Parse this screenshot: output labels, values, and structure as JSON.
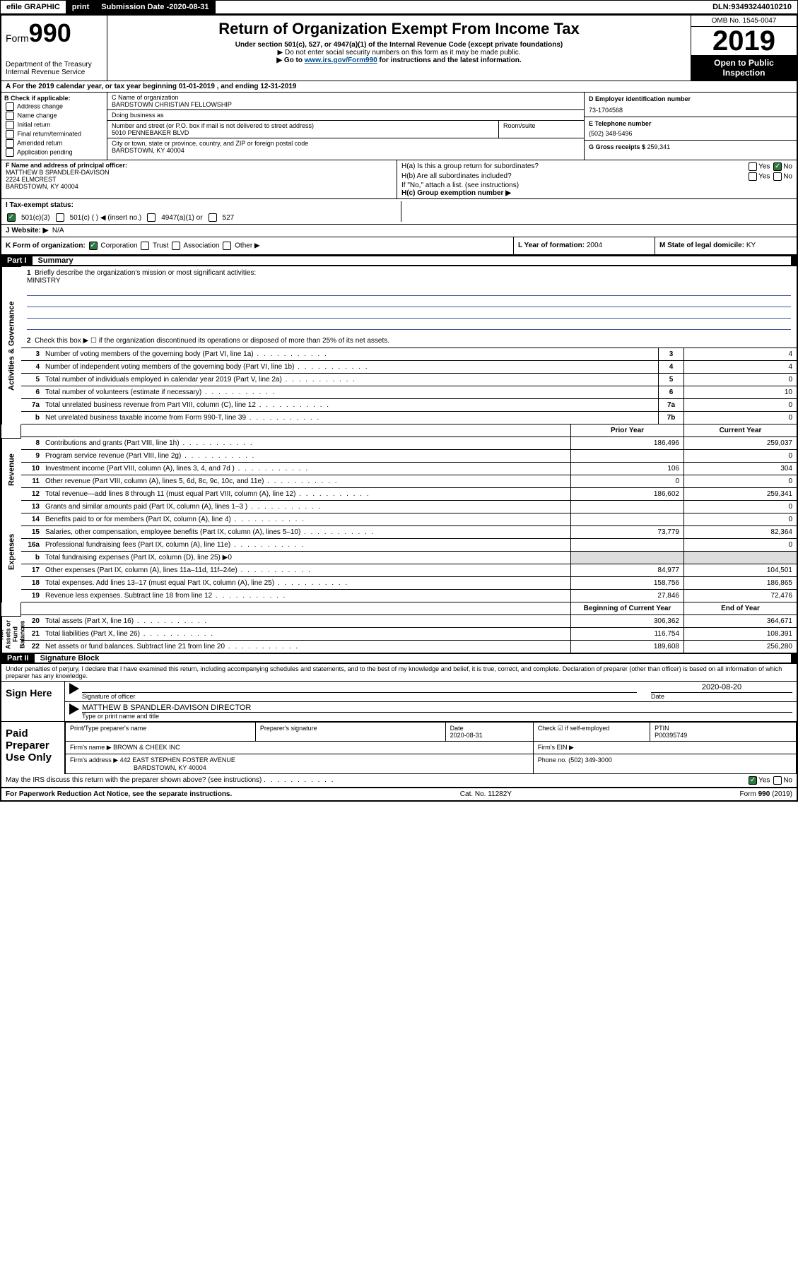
{
  "colors": {
    "black": "#000000",
    "white": "#ffffff",
    "green_check": "#2a7a3f",
    "link_blue": "#004b8d",
    "line_blue": "#3b5998",
    "shaded": "#dddddd"
  },
  "topbar": {
    "efile": "efile GRAPHIC",
    "print": "print",
    "sub_label": "Submission Date - ",
    "sub_date": "2020-08-31",
    "dln_label": "DLN: ",
    "dln": "93493244010210"
  },
  "header": {
    "form_word": "Form",
    "form_num": "990",
    "dept1": "Department of the Treasury",
    "dept2": "Internal Revenue Service",
    "title": "Return of Organization Exempt From Income Tax",
    "sub1": "Under section 501(c), 527, or 4947(a)(1) of the Internal Revenue Code (except private foundations)",
    "sub2": "▶ Do not enter social security numbers on this form as it may be made public.",
    "sub3_pre": "▶ Go to ",
    "sub3_link": "www.irs.gov/Form990",
    "sub3_post": " for instructions and the latest information.",
    "omb": "OMB No. 1545-0047",
    "year": "2019",
    "open": "Open to Public Inspection"
  },
  "rowA": "A For the 2019 calendar year, or tax year beginning 01-01-2019   , and ending 12-31-2019",
  "sectionB": {
    "label": "B Check if applicable:",
    "items": [
      "Address change",
      "Name change",
      "Initial return",
      "Final return/terminated",
      "Amended return",
      "Application pending"
    ]
  },
  "sectionC": {
    "name_label": "C Name of organization",
    "name": "BARDSTOWN CHRISTIAN FELLOWSHIP",
    "dba_label": "Doing business as",
    "dba": "",
    "street_label": "Number and street (or P.O. box if mail is not delivered to street address)",
    "street": "5010 PENNEBAKER BLVD",
    "room_label": "Room/suite",
    "city_label": "City or town, state or province, country, and ZIP or foreign postal code",
    "city": "BARDSTOWN, KY  40004"
  },
  "sectionD": {
    "label": "D Employer identification number",
    "value": "73-1704568"
  },
  "sectionE": {
    "label": "E Telephone number",
    "value": "(502) 348-5496"
  },
  "sectionG": {
    "label": "G Gross receipts $ ",
    "value": "259,341"
  },
  "sectionF": {
    "label": "F Name and address of principal officer:",
    "name": "MATTHEW B SPANDLER-DAVISON",
    "street": "2224 ELMCREST",
    "city": "BARDSTOWN, KY  40004"
  },
  "sectionH": {
    "ha": "H(a)  Is this a group return for subordinates?",
    "hb": "H(b)  Are all subordinates included?",
    "hb_note": "If \"No,\" attach a list. (see instructions)",
    "hc": "H(c)  Group exemption number ▶",
    "yes": "Yes",
    "no": "No"
  },
  "rowI": {
    "label": "I   Tax-exempt status:",
    "c3": "501(c)(3)",
    "c": "501(c) (  ) ◀ (insert no.)",
    "a1": "4947(a)(1) or",
    "527": "527"
  },
  "rowJ": {
    "label": "J   Website: ▶",
    "value": "N/A"
  },
  "rowK": {
    "label": "K Form of organization:",
    "corp": "Corporation",
    "trust": "Trust",
    "assoc": "Association",
    "other": "Other ▶"
  },
  "rowL": {
    "label": "L Year of formation: ",
    "value": "2004"
  },
  "rowM": {
    "label": "M State of legal domicile: ",
    "value": "KY"
  },
  "part1": {
    "label": "Part I",
    "title": "Summary",
    "vlabel_gov": "Activities & Governance",
    "vlabel_rev": "Revenue",
    "vlabel_exp": "Expenses",
    "vlabel_net": "Net Assets or Fund Balances",
    "l1": "Briefly describe the organization's mission or most significant activities:",
    "l1_val": "MINISTRY",
    "l2": "Check this box ▶ ☐  if the organization discontinued its operations or disposed of more than 25% of its net assets.",
    "lines_gov": [
      {
        "n": "3",
        "d": "Number of voting members of the governing body (Part VI, line 1a)",
        "c": "3",
        "v": "4"
      },
      {
        "n": "4",
        "d": "Number of independent voting members of the governing body (Part VI, line 1b)",
        "c": "4",
        "v": "4"
      },
      {
        "n": "5",
        "d": "Total number of individuals employed in calendar year 2019 (Part V, line 2a)",
        "c": "5",
        "v": "0"
      },
      {
        "n": "6",
        "d": "Total number of volunteers (estimate if necessary)",
        "c": "6",
        "v": "10"
      },
      {
        "n": "7a",
        "d": "Total unrelated business revenue from Part VIII, column (C), line 12",
        "c": "7a",
        "v": "0"
      },
      {
        "n": "b",
        "d": "Net unrelated business taxable income from Form 990-T, line 39",
        "c": "7b",
        "v": "0"
      }
    ],
    "hdr_prior": "Prior Year",
    "hdr_curr": "Current Year",
    "hdr_begin": "Beginning of Current Year",
    "hdr_end": "End of Year",
    "lines_rev": [
      {
        "n": "8",
        "d": "Contributions and grants (Part VIII, line 1h)",
        "p": "186,496",
        "c": "259,037"
      },
      {
        "n": "9",
        "d": "Program service revenue (Part VIII, line 2g)",
        "p": "",
        "c": "0"
      },
      {
        "n": "10",
        "d": "Investment income (Part VIII, column (A), lines 3, 4, and 7d )",
        "p": "106",
        "c": "304"
      },
      {
        "n": "11",
        "d": "Other revenue (Part VIII, column (A), lines 5, 6d, 8c, 9c, 10c, and 11e)",
        "p": "0",
        "c": "0"
      },
      {
        "n": "12",
        "d": "Total revenue—add lines 8 through 11 (must equal Part VIII, column (A), line 12)",
        "p": "186,602",
        "c": "259,341"
      }
    ],
    "lines_exp": [
      {
        "n": "13",
        "d": "Grants and similar amounts paid (Part IX, column (A), lines 1–3 )",
        "p": "",
        "c": "0"
      },
      {
        "n": "14",
        "d": "Benefits paid to or for members (Part IX, column (A), line 4)",
        "p": "",
        "c": "0"
      },
      {
        "n": "15",
        "d": "Salaries, other compensation, employee benefits (Part IX, column (A), lines 5–10)",
        "p": "73,779",
        "c": "82,364"
      },
      {
        "n": "16a",
        "d": "Professional fundraising fees (Part IX, column (A), line 11e)",
        "p": "",
        "c": "0"
      },
      {
        "n": "b",
        "d": "Total fundraising expenses (Part IX, column (D), line 25) ▶0",
        "p": "",
        "c": "",
        "shaded": true
      },
      {
        "n": "17",
        "d": "Other expenses (Part IX, column (A), lines 11a–11d, 11f–24e)",
        "p": "84,977",
        "c": "104,501"
      },
      {
        "n": "18",
        "d": "Total expenses. Add lines 13–17 (must equal Part IX, column (A), line 25)",
        "p": "158,756",
        "c": "186,865"
      },
      {
        "n": "19",
        "d": "Revenue less expenses. Subtract line 18 from line 12",
        "p": "27,846",
        "c": "72,476"
      }
    ],
    "lines_net": [
      {
        "n": "20",
        "d": "Total assets (Part X, line 16)",
        "p": "306,362",
        "c": "364,671"
      },
      {
        "n": "21",
        "d": "Total liabilities (Part X, line 26)",
        "p": "116,754",
        "c": "108,391"
      },
      {
        "n": "22",
        "d": "Net assets or fund balances. Subtract line 21 from line 20",
        "p": "189,608",
        "c": "256,280"
      }
    ]
  },
  "part2": {
    "label": "Part II",
    "title": "Signature Block",
    "declaration": "Under penalties of perjury, I declare that I have examined this return, including accompanying schedules and statements, and to the best of my knowledge and belief, it is true, correct, and complete. Declaration of preparer (other than officer) is based on all information of which preparer has any knowledge.",
    "sign_here": "Sign Here",
    "sig_officer": "Signature of officer",
    "sig_date": "2020-08-20",
    "date_label": "Date",
    "officer_name": "MATTHEW B SPANDLER-DAVISON  DIRECTOR",
    "type_label": "Type or print name and title",
    "paid": "Paid Preparer Use Only",
    "prep_name_label": "Print/Type preparer's name",
    "prep_sig_label": "Preparer's signature",
    "prep_date": "2020-08-31",
    "check_if": "Check ☑ if self-employed",
    "ptin_label": "PTIN",
    "ptin": "P00395749",
    "firm_name_label": "Firm's name    ▶",
    "firm_name": "BROWN & CHEEK INC",
    "firm_ein_label": "Firm's EIN ▶",
    "firm_addr_label": "Firm's address ▶",
    "firm_addr1": "442 EAST STEPHEN FOSTER AVENUE",
    "firm_addr2": "BARDSTOWN, KY  40004",
    "phone_label": "Phone no. ",
    "phone": "(502) 349-3000",
    "discuss": "May the IRS discuss this return with the preparer shown above? (see instructions)",
    "yes": "Yes",
    "no": "No"
  },
  "footer": {
    "left": "For Paperwork Reduction Act Notice, see the separate instructions.",
    "center": "Cat. No. 11282Y",
    "right": "Form 990 (2019)"
  }
}
